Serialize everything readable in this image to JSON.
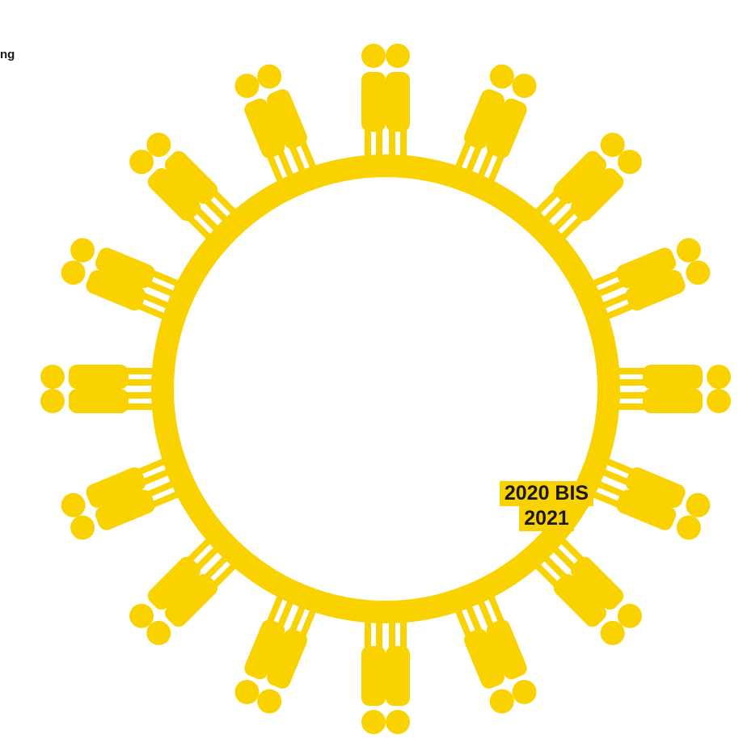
{
  "fragment_text": "ng",
  "year_label": {
    "line1": "2020 BIS",
    "line2": "2021"
  },
  "colors": {
    "accent": "#f9d200",
    "text": "#1a1a1a",
    "background": "#ffffff"
  },
  "figure_icon": "person-pair-icon"
}
